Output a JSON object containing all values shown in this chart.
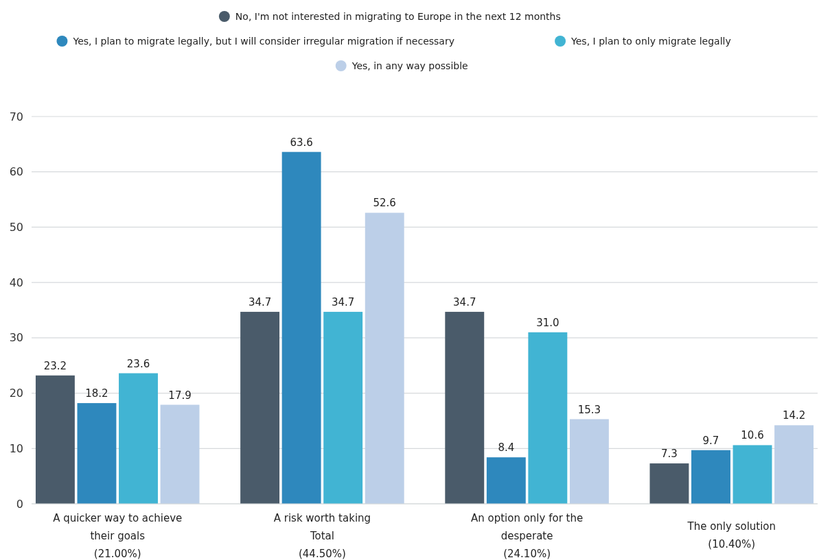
{
  "chart_data": {
    "type": "bar",
    "categories": [
      "A quicker way to achieve\ntheir goals\n(21.00%)",
      "A risk worth taking\nTotal\n(44.50%)",
      "An option only for the\ndesperate\n(24.10%)",
      "The only solution\n(10.40%)"
    ],
    "series": [
      {
        "name": "No, I'm not interested in migrating to Europe in the next 12 months",
        "color": "#4a5b6a",
        "values": [
          23.2,
          34.7,
          34.7,
          7.3
        ],
        "value_labels": [
          "23.2",
          "34.7",
          "34.7",
          "7.3"
        ]
      },
      {
        "name": "Yes, I plan to migrate legally, but I will consider irregular migration if necessary",
        "color": "#2e88bd",
        "values": [
          18.2,
          63.6,
          8.4,
          9.7
        ],
        "value_labels": [
          "18.2",
          "63.6",
          "8.4",
          "9.7"
        ]
      },
      {
        "name": "Yes, I plan to only migrate legally",
        "color": "#41b4d3",
        "values": [
          23.6,
          34.7,
          31.0,
          10.6
        ],
        "value_labels": [
          "23.6",
          "34.7",
          "31.0",
          "10.6"
        ]
      },
      {
        "name": "Yes, in any way possible",
        "color": "#bccfe8",
        "values": [
          17.9,
          52.6,
          15.3,
          14.2
        ],
        "value_labels": [
          "17.9",
          "52.6",
          "15.3",
          "14.2"
        ]
      }
    ],
    "ylim": [
      0,
      70
    ],
    "yticks": [
      0,
      10,
      20,
      30,
      40,
      50,
      60,
      70
    ],
    "grid": "y",
    "legend": "top"
  }
}
